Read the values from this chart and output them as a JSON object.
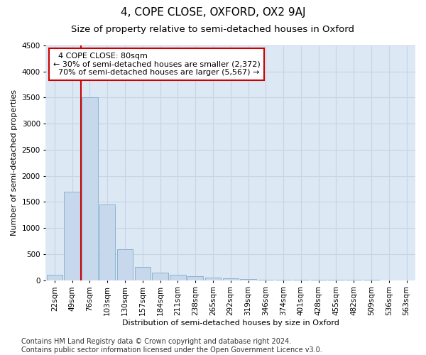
{
  "title": "4, COPE CLOSE, OXFORD, OX2 9AJ",
  "subtitle": "Size of property relative to semi-detached houses in Oxford",
  "xlabel": "Distribution of semi-detached houses by size in Oxford",
  "ylabel": "Number of semi-detached properties",
  "property_label": "4 COPE CLOSE: 80sqm",
  "pct_smaller": 30,
  "pct_larger": 70,
  "count_smaller": 2372,
  "count_larger": 5567,
  "categories": [
    "22sqm",
    "49sqm",
    "76sqm",
    "103sqm",
    "130sqm",
    "157sqm",
    "184sqm",
    "211sqm",
    "238sqm",
    "265sqm",
    "292sqm",
    "319sqm",
    "346sqm",
    "374sqm",
    "401sqm",
    "428sqm",
    "455sqm",
    "482sqm",
    "509sqm",
    "536sqm",
    "563sqm"
  ],
  "values": [
    100,
    1700,
    3500,
    1450,
    600,
    250,
    150,
    100,
    75,
    55,
    35,
    20,
    15,
    10,
    8,
    5,
    4,
    3,
    3,
    2,
    2
  ],
  "bar_color": "#c8d8ec",
  "bar_edge_color": "#8ab4d0",
  "vline_color": "#cc0000",
  "vline_bin_index": 2,
  "grid_color": "#c8d4e4",
  "background_color": "#dce8f4",
  "ylim": [
    0,
    4500
  ],
  "yticks": [
    0,
    500,
    1000,
    1500,
    2000,
    2500,
    3000,
    3500,
    4000,
    4500
  ],
  "annotation_box_facecolor": "#ffffff",
  "annotation_box_edgecolor": "#cc0000",
  "footer": "Contains HM Land Registry data © Crown copyright and database right 2024.\nContains public sector information licensed under the Open Government Licence v3.0.",
  "title_fontsize": 11,
  "subtitle_fontsize": 9.5,
  "axis_label_fontsize": 8,
  "tick_fontsize": 7.5,
  "annotation_fontsize": 8,
  "footer_fontsize": 7
}
